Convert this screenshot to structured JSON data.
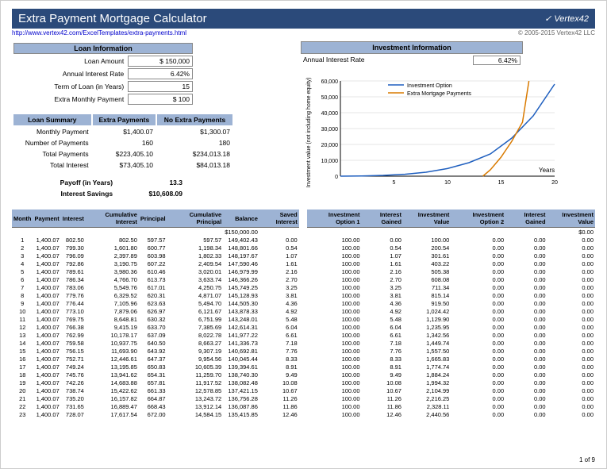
{
  "title": "Extra Payment Mortgage Calculator",
  "url": "http://www.vertex42.com/ExcelTemplates/extra-payments.html",
  "logo": "✓ Vertex42",
  "copyright": "© 2005-2015 Vertex42 LLC",
  "footer": "1 of 9",
  "loan_info": {
    "header": "Loan Information",
    "rows": [
      {
        "label": "Loan Amount",
        "value": "$   150,000"
      },
      {
        "label": "Annual Interest Rate",
        "value": "6.42%"
      },
      {
        "label": "Term of Loan (in Years)",
        "value": "15"
      },
      {
        "label": "Extra Monthly Payment",
        "value": "$         100"
      }
    ]
  },
  "loan_summary": {
    "header": "Loan Summary",
    "col1": "Extra Payments",
    "col2": "No Extra Payments",
    "rows": [
      {
        "label": "Monthly Payment",
        "v1": "$1,400.07",
        "v2": "$1,300.07"
      },
      {
        "label": "Number of Payments",
        "v1": "160",
        "v2": "180"
      },
      {
        "label": "Total Payments",
        "v1": "$223,405.10",
        "v2": "$234,013.18"
      },
      {
        "label": "Total Interest",
        "v1": "$73,405.10",
        "v2": "$84,013.18"
      }
    ],
    "payoff_label": "Payoff (in Years)",
    "payoff": "13.3",
    "savings_label": "Interest Savings",
    "savings": "$10,608.09"
  },
  "inv_info": {
    "header": "Investment Information",
    "rate_label": "Annual Interest Rate",
    "rate": "6.42%"
  },
  "chart": {
    "ylabel": "Investment value (not including home equity)",
    "xlabel": "Years",
    "legend": [
      "Investment Option",
      "Extra Mortgage Payments"
    ],
    "colors": [
      "#1f5fbf",
      "#d97a00"
    ],
    "xlim": [
      0,
      20
    ],
    "ylim": [
      0,
      60000
    ],
    "xticks": [
      0,
      5,
      10,
      15,
      20
    ],
    "yticks": [
      0,
      10000,
      20000,
      30000,
      40000,
      50000,
      60000
    ],
    "series": [
      {
        "pts": [
          [
            0,
            0
          ],
          [
            2,
            150
          ],
          [
            4,
            500
          ],
          [
            6,
            1200
          ],
          [
            8,
            2500
          ],
          [
            10,
            4800
          ],
          [
            12,
            8500
          ],
          [
            14,
            14000
          ],
          [
            16,
            24000
          ],
          [
            18,
            38000
          ],
          [
            20,
            58000
          ]
        ]
      },
      {
        "pts": [
          [
            13.3,
            0
          ],
          [
            14,
            4000
          ],
          [
            15,
            12000
          ],
          [
            16,
            22000
          ],
          [
            17,
            34000
          ],
          [
            17.6,
            60000
          ]
        ]
      }
    ],
    "grid_color": "#cccccc",
    "bg": "#ffffff"
  },
  "amort": {
    "headers_left": [
      "Month",
      "Payment",
      "Interest",
      "Cumulative Interest",
      "Principal",
      "Cumulative Principal",
      "Balance",
      "Saved Interest"
    ],
    "headers_right": [
      "Investment Option 1",
      "Interest Gained",
      "Investment Value",
      "Investment Option 2",
      "Interest Gained",
      "Investment Value"
    ],
    "start_balance": "$150,000.00",
    "start_inv": "$0.00",
    "rows": [
      [
        "1",
        "1,400.07",
        "802.50",
        "802.50",
        "597.57",
        "597.57",
        "149,402.43",
        "0.00",
        "100.00",
        "0.00",
        "100.00",
        "0.00",
        "0.00",
        "0.00"
      ],
      [
        "2",
        "1,400.07",
        "799.30",
        "1,601.80",
        "600.77",
        "1,198.34",
        "148,801.66",
        "0.54",
        "100.00",
        "0.54",
        "200.54",
        "0.00",
        "0.00",
        "0.00"
      ],
      [
        "3",
        "1,400.07",
        "796.09",
        "2,397.89",
        "603.98",
        "1,802.33",
        "148,197.67",
        "1.07",
        "100.00",
        "1.07",
        "301.61",
        "0.00",
        "0.00",
        "0.00"
      ],
      [
        "4",
        "1,400.07",
        "792.86",
        "3,190.75",
        "607.22",
        "2,409.54",
        "147,590.46",
        "1.61",
        "100.00",
        "1.61",
        "403.22",
        "0.00",
        "0.00",
        "0.00"
      ],
      [
        "5",
        "1,400.07",
        "789.61",
        "3,980.36",
        "610.46",
        "3,020.01",
        "146,979.99",
        "2.16",
        "100.00",
        "2.16",
        "505.38",
        "0.00",
        "0.00",
        "0.00"
      ],
      [
        "6",
        "1,400.07",
        "786.34",
        "4,766.70",
        "613.73",
        "3,633.74",
        "146,366.26",
        "2.70",
        "100.00",
        "2.70",
        "608.08",
        "0.00",
        "0.00",
        "0.00"
      ],
      [
        "7",
        "1,400.07",
        "783.06",
        "5,549.76",
        "617.01",
        "4,250.75",
        "145,749.25",
        "3.25",
        "100.00",
        "3.25",
        "711.34",
        "0.00",
        "0.00",
        "0.00"
      ],
      [
        "8",
        "1,400.07",
        "779.76",
        "6,329.52",
        "620.31",
        "4,871.07",
        "145,128.93",
        "3.81",
        "100.00",
        "3.81",
        "815.14",
        "0.00",
        "0.00",
        "0.00"
      ],
      [
        "9",
        "1,400.07",
        "776.44",
        "7,105.96",
        "623.63",
        "5,494.70",
        "144,505.30",
        "4.36",
        "100.00",
        "4.36",
        "919.50",
        "0.00",
        "0.00",
        "0.00"
      ],
      [
        "10",
        "1,400.07",
        "773.10",
        "7,879.06",
        "626.97",
        "6,121.67",
        "143,878.33",
        "4.92",
        "100.00",
        "4.92",
        "1,024.42",
        "0.00",
        "0.00",
        "0.00"
      ],
      [
        "11",
        "1,400.07",
        "769.75",
        "8,648.81",
        "630.32",
        "6,751.99",
        "143,248.01",
        "5.48",
        "100.00",
        "5.48",
        "1,129.90",
        "0.00",
        "0.00",
        "0.00"
      ],
      [
        "12",
        "1,400.07",
        "766.38",
        "9,415.19",
        "633.70",
        "7,385.69",
        "142,614.31",
        "6.04",
        "100.00",
        "6.04",
        "1,235.95",
        "0.00",
        "0.00",
        "0.00"
      ],
      [
        "13",
        "1,400.07",
        "762.99",
        "10,178.17",
        "637.09",
        "8,022.78",
        "141,977.22",
        "6.61",
        "100.00",
        "6.61",
        "1,342.56",
        "0.00",
        "0.00",
        "0.00"
      ],
      [
        "14",
        "1,400.07",
        "759.58",
        "10,937.75",
        "640.50",
        "8,663.27",
        "141,336.73",
        "7.18",
        "100.00",
        "7.18",
        "1,449.74",
        "0.00",
        "0.00",
        "0.00"
      ],
      [
        "15",
        "1,400.07",
        "756.15",
        "11,693.90",
        "643.92",
        "9,307.19",
        "140,692.81",
        "7.76",
        "100.00",
        "7.76",
        "1,557.50",
        "0.00",
        "0.00",
        "0.00"
      ],
      [
        "16",
        "1,400.07",
        "752.71",
        "12,446.61",
        "647.37",
        "9,954.56",
        "140,045.44",
        "8.33",
        "100.00",
        "8.33",
        "1,665.83",
        "0.00",
        "0.00",
        "0.00"
      ],
      [
        "17",
        "1,400.07",
        "749.24",
        "13,195.85",
        "650.83",
        "10,605.39",
        "139,394.61",
        "8.91",
        "100.00",
        "8.91",
        "1,774.74",
        "0.00",
        "0.00",
        "0.00"
      ],
      [
        "18",
        "1,400.07",
        "745.76",
        "13,941.62",
        "654.31",
        "11,259.70",
        "138,740.30",
        "9.49",
        "100.00",
        "9.49",
        "1,884.24",
        "0.00",
        "0.00",
        "0.00"
      ],
      [
        "19",
        "1,400.07",
        "742.26",
        "14,683.88",
        "657.81",
        "11,917.52",
        "138,082.48",
        "10.08",
        "100.00",
        "10.08",
        "1,994.32",
        "0.00",
        "0.00",
        "0.00"
      ],
      [
        "20",
        "1,400.07",
        "738.74",
        "15,422.62",
        "661.33",
        "12,578.85",
        "137,421.15",
        "10.67",
        "100.00",
        "10.67",
        "2,104.99",
        "0.00",
        "0.00",
        "0.00"
      ],
      [
        "21",
        "1,400.07",
        "735.20",
        "16,157.82",
        "664.87",
        "13,243.72",
        "136,756.28",
        "11.26",
        "100.00",
        "11.26",
        "2,216.25",
        "0.00",
        "0.00",
        "0.00"
      ],
      [
        "22",
        "1,400.07",
        "731.65",
        "16,889.47",
        "668.43",
        "13,912.14",
        "136,087.86",
        "11.86",
        "100.00",
        "11.86",
        "2,328.11",
        "0.00",
        "0.00",
        "0.00"
      ],
      [
        "23",
        "1,400.07",
        "728.07",
        "17,617.54",
        "672.00",
        "14,584.15",
        "135,415.85",
        "12.46",
        "100.00",
        "12.46",
        "2,440.56",
        "0.00",
        "0.00",
        "0.00"
      ]
    ]
  }
}
